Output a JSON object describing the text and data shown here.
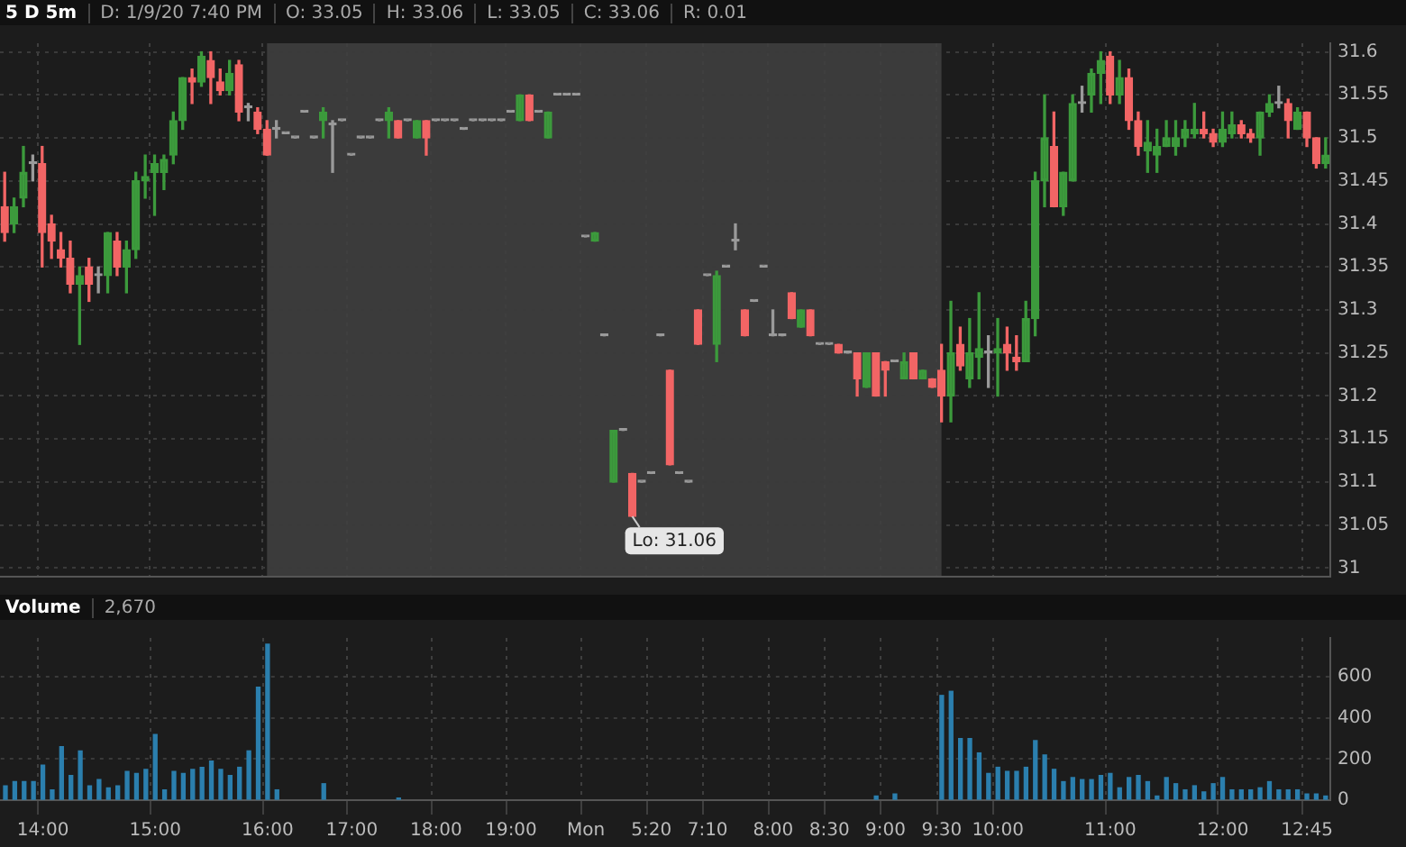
{
  "chart_data": [
    {
      "type": "candlestick",
      "title": "5 D 5m",
      "subtitle": "D: 1/9/20 7:40 PM  O: 33.05  H: 33.06  L: 33.05  C: 33.06  R: 0.01",
      "annotations": [
        "Lo: 31.06"
      ],
      "categories": [
        null,
        null,
        null,
        null,
        "14:00",
        null,
        null,
        null,
        null,
        null,
        null,
        null,
        null,
        null,
        null,
        null,
        "15:00",
        null,
        null,
        null,
        null,
        null,
        null,
        null,
        null,
        null,
        null,
        null,
        "16:00",
        null,
        null,
        null,
        null,
        null,
        null,
        null,
        null,
        "17:00",
        null,
        null,
        null,
        null,
        null,
        null,
        null,
        null,
        "18:00",
        null,
        null,
        null,
        null,
        null,
        null,
        null,
        "19:00",
        null,
        null,
        null,
        null,
        null,
        null,
        null,
        "Mon",
        null,
        null,
        null,
        null,
        null,
        null,
        "5:20",
        null,
        null,
        null,
        null,
        null,
        "7:10",
        null,
        null,
        null,
        null,
        null,
        null,
        "8:00",
        null,
        null,
        null,
        null,
        null,
        "8:30",
        null,
        null,
        null,
        null,
        null,
        "9:00",
        null,
        null,
        null,
        null,
        null,
        "9:30",
        null,
        null,
        null,
        null,
        null,
        "10:00",
        null,
        null,
        null,
        null,
        null,
        null,
        null,
        null,
        null,
        null,
        null,
        "11:00",
        null,
        null,
        null,
        null,
        null,
        null,
        null,
        null,
        null,
        null,
        null,
        "12:00",
        null,
        null,
        null,
        null,
        null,
        null,
        null,
        null,
        "12:45",
        null,
        null
      ],
      "ohlc": [
        [
          31.42,
          31.46,
          31.38,
          31.39
        ],
        [
          31.4,
          31.43,
          31.39,
          31.42
        ],
        [
          31.43,
          31.49,
          31.42,
          31.46
        ],
        [
          31.47,
          31.48,
          31.45,
          31.47
        ],
        [
          31.47,
          31.49,
          31.35,
          31.39
        ],
        [
          31.4,
          31.41,
          31.36,
          31.38
        ],
        [
          31.37,
          31.39,
          31.35,
          31.36
        ],
        [
          31.36,
          31.38,
          31.32,
          31.33
        ],
        [
          31.33,
          31.35,
          31.26,
          31.34
        ],
        [
          31.35,
          31.36,
          31.31,
          31.33
        ],
        [
          31.34,
          31.35,
          31.32,
          31.34
        ],
        [
          31.34,
          31.39,
          31.32,
          31.39
        ],
        [
          31.38,
          31.39,
          31.34,
          31.35
        ],
        [
          31.35,
          31.38,
          31.32,
          31.37
        ],
        [
          31.37,
          31.46,
          31.36,
          31.45
        ],
        [
          31.45,
          31.48,
          31.43,
          31.455
        ],
        [
          31.46,
          31.48,
          31.41,
          31.47
        ],
        [
          31.46,
          31.48,
          31.44,
          31.475
        ],
        [
          31.48,
          31.53,
          31.47,
          31.52
        ],
        [
          31.52,
          31.57,
          31.51,
          31.57
        ],
        [
          31.57,
          31.58,
          31.54,
          31.565
        ],
        [
          31.565,
          31.6,
          31.56,
          31.595
        ],
        [
          31.59,
          31.6,
          31.54,
          31.57
        ],
        [
          31.565,
          31.58,
          31.55,
          31.555
        ],
        [
          31.555,
          31.59,
          31.55,
          31.575
        ],
        [
          31.585,
          31.59,
          31.52,
          31.53
        ],
        [
          31.535,
          31.54,
          31.52,
          31.535
        ],
        [
          31.53,
          31.535,
          31.505,
          31.51
        ],
        [
          31.51,
          31.52,
          31.48,
          31.48
        ],
        [
          31.51,
          31.52,
          31.5,
          31.51
        ],
        [
          31.505,
          31.505,
          31.505,
          31.505
        ],
        [
          31.5,
          31.5,
          31.5,
          31.5
        ],
        [
          31.53,
          31.53,
          31.53,
          31.53
        ],
        [
          31.5,
          31.5,
          31.5,
          31.5
        ],
        [
          31.52,
          31.535,
          31.5,
          31.53
        ],
        [
          31.515,
          31.52,
          31.46,
          31.515
        ],
        [
          31.52,
          31.52,
          31.52,
          31.52
        ],
        [
          31.48,
          31.48,
          31.48,
          31.48
        ],
        [
          31.5,
          31.5,
          31.5,
          31.5
        ],
        [
          31.5,
          31.5,
          31.5,
          31.5
        ],
        [
          31.52,
          31.52,
          31.52,
          31.52
        ],
        [
          31.52,
          31.535,
          31.5,
          31.53
        ],
        [
          31.52,
          31.52,
          31.5,
          31.5
        ],
        [
          31.52,
          31.52,
          31.52,
          31.52
        ],
        [
          31.5,
          31.52,
          31.5,
          31.52
        ],
        [
          31.52,
          31.52,
          31.48,
          31.5
        ],
        [
          31.52,
          31.52,
          31.52,
          31.52
        ],
        [
          31.52,
          31.52,
          31.52,
          31.52
        ],
        [
          31.52,
          31.52,
          31.52,
          31.52
        ],
        [
          31.51,
          31.51,
          31.51,
          31.51
        ],
        [
          31.52,
          31.52,
          31.52,
          31.52
        ],
        [
          31.52,
          31.52,
          31.52,
          31.52
        ],
        [
          31.52,
          31.52,
          31.52,
          31.52
        ],
        [
          31.52,
          31.52,
          31.52,
          31.52
        ],
        [
          31.53,
          31.53,
          31.53,
          31.53
        ],
        [
          31.52,
          31.55,
          31.52,
          31.55
        ],
        [
          31.55,
          31.55,
          31.52,
          31.52
        ],
        [
          31.53,
          31.53,
          31.53,
          31.53
        ],
        [
          31.5,
          31.53,
          31.5,
          31.53
        ],
        [
          31.55,
          31.55,
          31.55,
          31.55
        ],
        [
          31.55,
          31.55,
          31.55,
          31.55
        ],
        [
          31.55,
          31.55,
          31.55,
          31.55
        ],
        [
          31.385,
          31.385,
          31.385,
          31.385
        ],
        [
          31.38,
          31.39,
          31.38,
          31.39
        ],
        [
          31.27,
          31.27,
          31.27,
          31.27
        ],
        [
          31.1,
          31.16,
          31.1,
          31.16
        ],
        [
          31.16,
          31.16,
          31.16,
          31.16
        ],
        [
          31.11,
          31.11,
          31.06,
          31.06
        ],
        [
          31.1,
          31.1,
          31.1,
          31.1
        ],
        [
          31.11,
          31.11,
          31.11,
          31.11
        ],
        [
          31.27,
          31.27,
          31.27,
          31.27
        ],
        [
          31.23,
          31.23,
          31.12,
          31.12
        ],
        [
          31.11,
          31.11,
          31.11,
          31.11
        ],
        [
          31.1,
          31.1,
          31.1,
          31.1
        ],
        [
          31.3,
          31.3,
          31.26,
          31.26
        ],
        [
          31.34,
          31.34,
          31.34,
          31.34
        ],
        [
          31.26,
          31.345,
          31.24,
          31.34
        ],
        [
          31.35,
          31.35,
          31.35,
          31.35
        ],
        [
          31.38,
          31.4,
          31.37,
          31.38
        ],
        [
          31.3,
          31.3,
          31.27,
          31.27
        ],
        [
          31.31,
          31.31,
          31.31,
          31.31
        ],
        [
          31.35,
          31.35,
          31.35,
          31.35
        ],
        [
          31.27,
          31.3,
          31.27,
          31.27
        ],
        [
          31.27,
          31.27,
          31.27,
          31.27
        ],
        [
          31.32,
          31.32,
          31.29,
          31.29
        ],
        [
          31.28,
          31.3,
          31.28,
          31.3
        ],
        [
          31.3,
          31.3,
          31.27,
          31.27
        ],
        [
          31.26,
          31.26,
          31.26,
          31.26
        ],
        [
          31.26,
          31.26,
          31.26,
          31.26
        ],
        [
          31.26,
          31.26,
          31.25,
          31.25
        ],
        [
          31.25,
          31.25,
          31.25,
          31.25
        ],
        [
          31.25,
          31.25,
          31.2,
          31.22
        ],
        [
          31.21,
          31.25,
          31.21,
          31.25
        ],
        [
          31.25,
          31.25,
          31.2,
          31.2
        ],
        [
          31.24,
          31.24,
          31.2,
          31.23
        ],
        [
          31.24,
          31.24,
          31.24,
          31.24
        ],
        [
          31.22,
          31.25,
          31.22,
          31.24
        ],
        [
          31.25,
          31.25,
          31.22,
          31.22
        ],
        [
          31.22,
          31.23,
          31.22,
          31.23
        ],
        [
          31.22,
          31.22,
          31.21,
          31.21
        ],
        [
          31.23,
          31.26,
          31.17,
          31.2
        ],
        [
          31.2,
          31.31,
          31.17,
          31.25
        ],
        [
          31.26,
          31.28,
          31.23,
          31.235
        ],
        [
          31.22,
          31.29,
          31.21,
          31.25
        ],
        [
          31.245,
          31.32,
          31.22,
          31.255
        ],
        [
          31.25,
          31.27,
          31.21,
          31.25
        ],
        [
          31.25,
          31.29,
          31.2,
          31.255
        ],
        [
          31.26,
          31.28,
          31.23,
          31.25
        ],
        [
          31.245,
          31.27,
          31.23,
          31.24
        ],
        [
          31.24,
          31.31,
          31.24,
          31.29
        ],
        [
          31.29,
          31.46,
          31.27,
          31.45
        ],
        [
          31.45,
          31.55,
          31.42,
          31.5
        ],
        [
          31.49,
          31.53,
          31.42,
          31.42
        ],
        [
          31.42,
          31.46,
          31.41,
          31.46
        ],
        [
          31.45,
          31.55,
          31.45,
          31.54
        ],
        [
          31.54,
          31.56,
          31.53,
          31.54
        ],
        [
          31.55,
          31.58,
          31.53,
          31.575
        ],
        [
          31.575,
          31.6,
          31.54,
          31.59
        ],
        [
          31.595,
          31.6,
          31.54,
          31.55
        ],
        [
          31.55,
          31.59,
          31.54,
          31.57
        ],
        [
          31.57,
          31.58,
          31.51,
          31.52
        ],
        [
          31.52,
          31.53,
          31.48,
          31.49
        ],
        [
          31.485,
          31.52,
          31.46,
          31.495
        ],
        [
          31.48,
          31.51,
          31.46,
          31.49
        ],
        [
          31.49,
          31.52,
          31.49,
          31.5
        ],
        [
          31.49,
          31.52,
          31.48,
          31.5
        ],
        [
          31.5,
          31.52,
          31.49,
          31.51
        ],
        [
          31.505,
          31.54,
          31.5,
          31.51
        ],
        [
          31.51,
          31.53,
          31.5,
          31.505
        ],
        [
          31.505,
          31.51,
          31.49,
          31.495
        ],
        [
          31.495,
          31.53,
          31.49,
          31.51
        ],
        [
          31.505,
          31.53,
          31.5,
          31.515
        ],
        [
          31.515,
          31.52,
          31.5,
          31.505
        ],
        [
          31.505,
          31.51,
          31.495,
          31.5
        ],
        [
          31.5,
          31.53,
          31.48,
          31.53
        ],
        [
          31.53,
          31.55,
          31.525,
          31.54
        ],
        [
          31.54,
          31.56,
          31.535,
          31.54
        ],
        [
          31.54,
          31.545,
          31.5,
          31.52
        ],
        [
          31.51,
          31.535,
          31.51,
          31.53
        ],
        [
          31.53,
          31.53,
          31.49,
          31.5
        ],
        [
          31.5,
          31.5,
          31.465,
          31.47
        ],
        [
          31.47,
          31.5,
          31.465,
          31.48
        ]
      ],
      "colors": [
        "#f26565",
        "#3c9a3c",
        "#3c9a3c",
        "#9a9a9a",
        "#f26565",
        "#f26565",
        "#f26565",
        "#f26565",
        "#3c9a3c",
        "#f26565",
        "#9a9a9a",
        "#3c9a3c",
        "#f26565",
        "#3c9a3c",
        "#3c9a3c",
        "#3c9a3c",
        "#3c9a3c",
        "#3c9a3c",
        "#3c9a3c",
        "#3c9a3c",
        "#f26565",
        "#3c9a3c",
        "#f26565",
        "#f26565",
        "#3c9a3c",
        "#f26565",
        "#9a9a9a",
        "#f26565",
        "#f26565",
        "#9a9a9a",
        "#9a9a9a",
        "#9a9a9a",
        "#9a9a9a",
        "#9a9a9a",
        "#3c9a3c",
        "#9a9a9a",
        "#9a9a9a",
        "#9a9a9a",
        "#9a9a9a",
        "#9a9a9a",
        "#9a9a9a",
        "#3c9a3c",
        "#f26565",
        "#9a9a9a",
        "#3c9a3c",
        "#f26565",
        "#9a9a9a",
        "#9a9a9a",
        "#9a9a9a",
        "#9a9a9a",
        "#9a9a9a",
        "#9a9a9a",
        "#9a9a9a",
        "#9a9a9a",
        "#9a9a9a",
        "#3c9a3c",
        "#f26565",
        "#9a9a9a",
        "#3c9a3c",
        "#9a9a9a",
        "#9a9a9a",
        "#9a9a9a",
        "#9a9a9a",
        "#3c9a3c",
        "#9a9a9a",
        "#3c9a3c",
        "#9a9a9a",
        "#f26565",
        "#9a9a9a",
        "#9a9a9a",
        "#9a9a9a",
        "#f26565",
        "#9a9a9a",
        "#9a9a9a",
        "#f26565",
        "#9a9a9a",
        "#3c9a3c",
        "#9a9a9a",
        "#9a9a9a",
        "#f26565",
        "#9a9a9a",
        "#9a9a9a",
        "#9a9a9a",
        "#9a9a9a",
        "#f26565",
        "#3c9a3c",
        "#f26565",
        "#9a9a9a",
        "#9a9a9a",
        "#f26565",
        "#9a9a9a",
        "#f26565",
        "#3c9a3c",
        "#f26565",
        "#f26565",
        "#9a9a9a",
        "#3c9a3c",
        "#f26565",
        "#3c9a3c",
        "#f26565",
        "#f26565",
        "#3c9a3c",
        "#f26565",
        "#3c9a3c",
        "#3c9a3c",
        "#9a9a9a",
        "#3c9a3c",
        "#f26565",
        "#f26565",
        "#3c9a3c",
        "#3c9a3c",
        "#3c9a3c",
        "#f26565",
        "#3c9a3c",
        "#3c9a3c",
        "#9a9a9a",
        "#3c9a3c",
        "#3c9a3c",
        "#f26565",
        "#3c9a3c",
        "#f26565",
        "#f26565",
        "#3c9a3c",
        "#3c9a3c",
        "#3c9a3c",
        "#3c9a3c",
        "#3c9a3c",
        "#3c9a3c",
        "#f26565",
        "#f26565",
        "#3c9a3c",
        "#3c9a3c",
        "#f26565",
        "#f26565",
        "#3c9a3c",
        "#3c9a3c",
        "#9a9a9a",
        "#f26565",
        "#3c9a3c",
        "#f26565",
        "#f26565",
        "#3c9a3c"
      ],
      "ylim": [
        30.99,
        31.61
      ],
      "yticks": [
        31,
        31.05,
        31.1,
        31.15,
        31.2,
        31.25,
        31.3,
        31.35,
        31.4,
        31.45,
        31.5,
        31.55,
        31.6
      ],
      "bands": [
        {
          "axis": "x",
          "from": "16:00",
          "to": "9:30",
          "color": "#3b3b3b"
        }
      ],
      "grid": true,
      "tick_labels": "y"
    },
    {
      "type": "bar",
      "title": "Volume",
      "subtitle": "2,670",
      "categories": [
        null,
        null,
        null,
        null,
        "14:00",
        null,
        null,
        null,
        null,
        null,
        null,
        null,
        null,
        null,
        null,
        null,
        "15:00",
        null,
        null,
        null,
        null,
        null,
        null,
        null,
        null,
        null,
        null,
        null,
        "16:00",
        null,
        null,
        null,
        null,
        null,
        null,
        null,
        null,
        "17:00",
        null,
        null,
        null,
        null,
        null,
        null,
        null,
        null,
        "18:00",
        null,
        null,
        null,
        null,
        null,
        null,
        null,
        "19:00",
        null,
        null,
        null,
        null,
        null,
        null,
        null,
        "Mon",
        null,
        null,
        null,
        null,
        null,
        null,
        "5:20",
        null,
        null,
        null,
        null,
        null,
        "7:10",
        null,
        null,
        null,
        null,
        null,
        null,
        "8:00",
        null,
        null,
        null,
        null,
        null,
        "8:30",
        null,
        null,
        null,
        null,
        null,
        "9:00",
        null,
        null,
        null,
        null,
        null,
        "9:30",
        null,
        null,
        null,
        null,
        null,
        "10:00",
        null,
        null,
        null,
        null,
        null,
        null,
        null,
        null,
        null,
        null,
        null,
        "11:00",
        null,
        null,
        null,
        null,
        null,
        null,
        null,
        null,
        null,
        null,
        null,
        "12:00",
        null,
        null,
        null,
        null,
        null,
        null,
        null,
        null,
        "12:45",
        null,
        null
      ],
      "values": [
        70,
        90,
        90,
        90,
        170,
        50,
        260,
        120,
        240,
        70,
        100,
        60,
        70,
        140,
        130,
        150,
        320,
        50,
        140,
        130,
        150,
        160,
        190,
        150,
        120,
        160,
        240,
        550,
        760,
        50,
        null,
        null,
        null,
        null,
        80,
        null,
        null,
        null,
        null,
        null,
        null,
        null,
        10,
        null,
        null,
        null,
        null,
        null,
        null,
        null,
        null,
        null,
        null,
        null,
        null,
        null,
        null,
        null,
        null,
        null,
        null,
        null,
        null,
        null,
        null,
        null,
        null,
        null,
        null,
        null,
        null,
        null,
        null,
        null,
        null,
        null,
        null,
        null,
        null,
        null,
        null,
        null,
        null,
        null,
        null,
        null,
        null,
        null,
        null,
        null,
        null,
        null,
        null,
        20,
        null,
        30,
        null,
        null,
        null,
        null,
        510,
        530,
        300,
        300,
        230,
        130,
        160,
        140,
        140,
        160,
        290,
        220,
        150,
        90,
        110,
        100,
        100,
        120,
        130,
        60,
        110,
        120,
        90,
        20,
        110,
        80,
        50,
        70,
        40,
        80,
        110,
        50,
        50,
        50,
        60,
        90,
        50,
        50,
        50,
        30,
        30,
        20
      ],
      "color": "#2b7fae",
      "ylim": [
        0,
        790
      ],
      "yticks": [
        0,
        200,
        400,
        600
      ],
      "grid": true
    }
  ]
}
